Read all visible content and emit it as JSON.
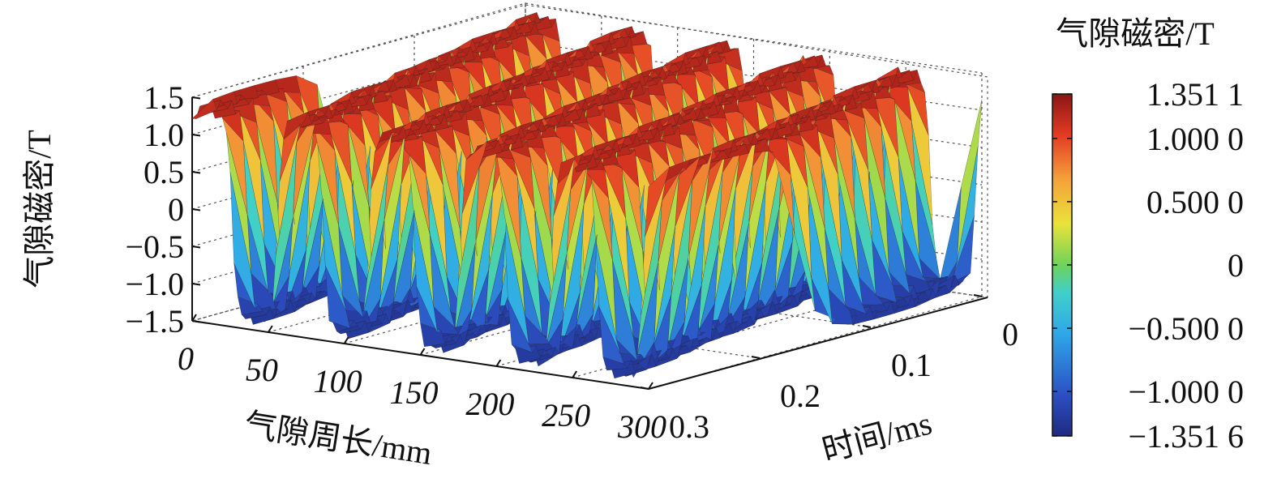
{
  "chart_data": {
    "type": "surface",
    "title": "",
    "xlabel": "气隙周长/mm",
    "ylabel": "时间/ms",
    "zlabel": "气隙磁密/T",
    "x_ticks": [
      "0",
      "50",
      "100",
      "150",
      "200",
      "250",
      "300"
    ],
    "y_ticks": [
      "0",
      "0.1",
      "0.2",
      "0.3"
    ],
    "z_ticks": [
      "1.5",
      "1.0",
      "0.5",
      "0",
      "−0.5",
      "−1.0",
      "−1.5"
    ],
    "xlim": [
      0,
      300
    ],
    "ylim": [
      0,
      0.3
    ],
    "zlim": [
      -1.5,
      1.5
    ],
    "grid": true,
    "pole_pairs_along_circumference": 5,
    "flux_density_peak_T": 1.3511,
    "flux_density_min_T": -1.3516,
    "colorbar": {
      "title": "气隙磁密/T",
      "colormap": "jet",
      "ticks": [
        "1.351 1",
        "1.000 0",
        "0.500 0",
        "0",
        "−0.500 0",
        "−1.000 0",
        "−1.351 6"
      ],
      "tick_values": [
        1.3511,
        1.0,
        0.5,
        0,
        -0.5,
        -1.0,
        -1.3516
      ],
      "min": -1.3516,
      "max": 1.3511
    }
  }
}
